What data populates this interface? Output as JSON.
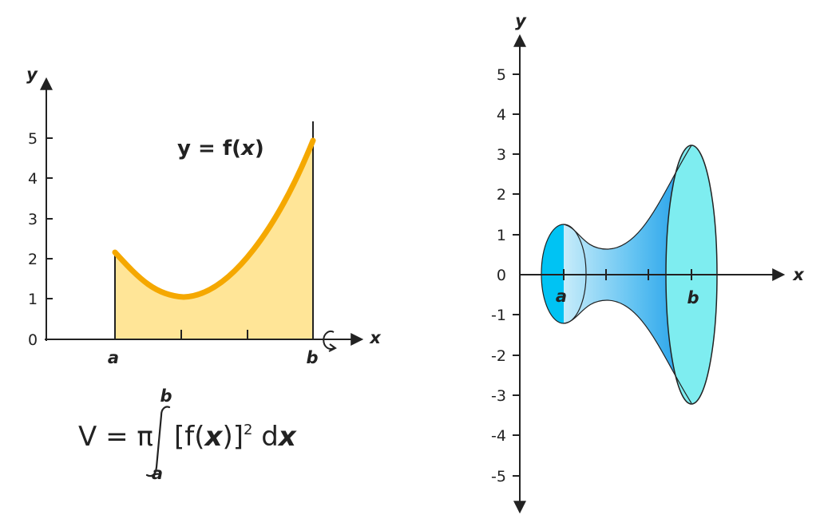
{
  "left_graph": {
    "y_axis_label": "y",
    "x_axis_label": "x",
    "y_ticks": [
      "0",
      "1",
      "2",
      "3",
      "4",
      "5"
    ],
    "curve_label": {
      "prefix": "y = f(",
      "var": "x",
      "suffix": ")"
    },
    "a_label": "a",
    "b_label": "b",
    "rotation_icon": "rotate-around-x-icon",
    "colors": {
      "curve": "#F5A800",
      "fill": "#FFE597",
      "axis": "#222222"
    }
  },
  "formula": {
    "lhs": "V = π",
    "integrand_prefix": "[f(",
    "integrand_var": "x",
    "integrand_suffix": ")]",
    "power": "2",
    "differential_prefix": " d",
    "differential_var": "x",
    "upper_limit": "b",
    "lower_limit": "a"
  },
  "right_graph": {
    "y_axis_label": "y",
    "x_axis_label": "x",
    "y_ticks": [
      "5",
      "4",
      "3",
      "2",
      "1",
      "0",
      "-1",
      "-2",
      "-3",
      "-4",
      "-5"
    ],
    "a_label": "a",
    "b_label": "b",
    "colors": {
      "left_disc": "#00C3F3",
      "right_disc": "#7EEDF0",
      "body_dark": "#1A9BE8",
      "body_light": "#C7ECFA",
      "axis": "#222222"
    }
  }
}
